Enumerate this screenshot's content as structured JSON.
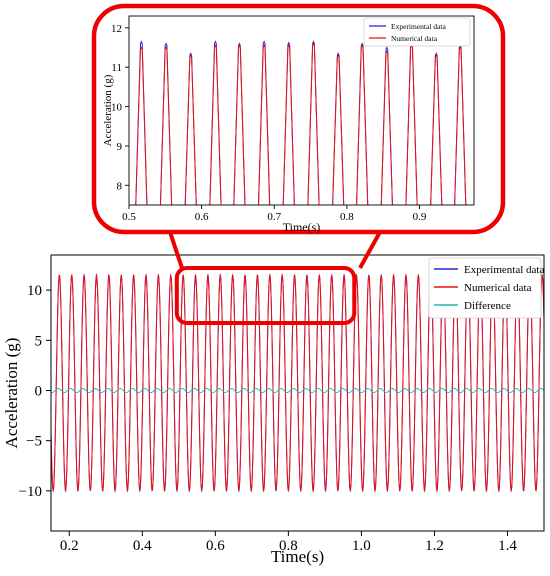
{
  "chart_data": [
    {
      "type": "line",
      "panel": "main",
      "xlabel": "Time(s)",
      "ylabel": "Acceleration (g)",
      "xlim": [
        0.15,
        1.5
      ],
      "ylim": [
        -14,
        13.5
      ],
      "xticks": [
        0.2,
        0.4,
        0.6,
        0.8,
        1.0,
        1.2,
        1.4
      ],
      "xtick_labels": [
        "0.2",
        "0.4",
        "0.6",
        "0.8",
        "1.0",
        "1.2",
        "1.4"
      ],
      "yticks": [
        -10,
        -5,
        0,
        5,
        10
      ],
      "ytick_labels": [
        "−10",
        "−5",
        "0",
        "5",
        "10"
      ],
      "grid": false,
      "legend_position": "top-right",
      "signal": {
        "frequency_hz": 29.5,
        "positive_peak": 11.5,
        "negative_peak": -10.0,
        "phase_s": 0.1645
      },
      "series": [
        {
          "name": "Experimental data",
          "color": "#2222dd",
          "amplitude": 10.75,
          "offset": 0.75
        },
        {
          "name": "Numerical data",
          "color": "#ee1111",
          "amplitude": 10.7,
          "offset": 0.75
        },
        {
          "name": "Difference",
          "color": "#1fb5b5",
          "amplitude": 0.2,
          "offset": 0.0
        }
      ]
    },
    {
      "type": "line",
      "panel": "zoom",
      "xlabel": "Time(s)",
      "ylabel": "Acceleration (g)",
      "xlim": [
        0.5,
        0.975
      ],
      "ylim": [
        7.5,
        12.3
      ],
      "xticks": [
        0.5,
        0.6,
        0.7,
        0.8,
        0.9
      ],
      "xtick_labels": [
        "0.5",
        "0.6",
        "0.7",
        "0.8",
        "0.9"
      ],
      "yticks": [
        8,
        9,
        10,
        11,
        12
      ],
      "ytick_labels": [
        "8",
        "9",
        "10",
        "11",
        "12"
      ],
      "grid": false,
      "legend_position": "top-right",
      "peaks_x": [
        0.517,
        0.551,
        0.585,
        0.619,
        0.652,
        0.686,
        0.72,
        0.754,
        0.788,
        0.821,
        0.855,
        0.889,
        0.923,
        0.956
      ],
      "peaks_experimental": [
        11.65,
        11.6,
        11.35,
        11.65,
        11.6,
        11.65,
        11.62,
        11.65,
        11.35,
        11.6,
        11.5,
        11.65,
        11.35,
        11.55
      ],
      "peaks_numerical": [
        11.5,
        11.5,
        11.3,
        11.55,
        11.55,
        11.55,
        11.55,
        11.6,
        11.3,
        11.55,
        11.4,
        11.55,
        11.3,
        11.5
      ],
      "series": [
        {
          "name": "Experimental data",
          "color": "#2222dd"
        },
        {
          "name": "Numerical data",
          "color": "#ee1111"
        }
      ]
    }
  ],
  "callout": {
    "color": "#ee0000",
    "source_range_x": [
      0.5,
      0.975
    ]
  }
}
